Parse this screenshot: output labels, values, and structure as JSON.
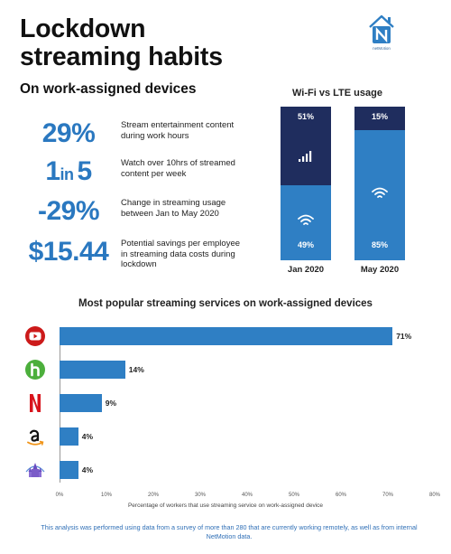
{
  "header": {
    "title_line1": "Lockdown",
    "title_line2": "streaming habits",
    "subtitle": "On work-assigned devices",
    "logo_text": "netMotion"
  },
  "stats": [
    {
      "big": "29%",
      "desc": "Stream entertainment content during work hours"
    },
    {
      "big_a": "1",
      "big_in": "in",
      "big_b": "5",
      "desc": "Watch over 10hrs of streamed content per week"
    },
    {
      "big": "-29%",
      "desc": "Change in streaming usage between Jan to May 2020"
    },
    {
      "big": "$15.44",
      "desc": "Potential savings per employee in streaming data costs during lockdown"
    }
  ],
  "colors": {
    "accent": "#2f7fc4",
    "dark": "#1f2d5e",
    "stat_blue": "#2a78c0",
    "text": "#222222"
  },
  "chart_data": [
    {
      "type": "bar",
      "stacked": true,
      "title": "Wi-Fi vs LTE usage",
      "categories": [
        "Jan 2020",
        "May 2020"
      ],
      "series": [
        {
          "name": "LTE",
          "icon": "cellular-signal-icon",
          "color": "#1f2d5e",
          "values": [
            51,
            15
          ],
          "labels": [
            "51%",
            "15%"
          ]
        },
        {
          "name": "Wi-Fi",
          "icon": "wifi-icon",
          "color": "#2f7fc4",
          "values": [
            49,
            85
          ],
          "labels": [
            "49%",
            "85%"
          ]
        }
      ],
      "ylim": [
        0,
        100
      ]
    },
    {
      "type": "bar",
      "orientation": "horizontal",
      "title": "Most popular streaming services on work-assigned devices",
      "xlabel": "Percentage of workers that use streaming service on work-assigned device",
      "categories": [
        "YouTube",
        "Hulu",
        "Netflix",
        "Amazon",
        "Disney"
      ],
      "icons": [
        "youtube-icon",
        "hulu-icon",
        "netflix-icon",
        "amazon-icon",
        "disney-icon"
      ],
      "values": [
        71,
        14,
        9,
        4,
        4
      ],
      "value_labels": [
        "71%",
        "14%",
        "9%",
        "4%",
        "4%"
      ],
      "xlim": [
        0,
        80
      ],
      "ticks": [
        "0%",
        "10%",
        "20%",
        "30%",
        "40%",
        "50%",
        "60%",
        "70%",
        "80%"
      ],
      "color": "#2f7fc4"
    }
  ],
  "footnote": "This analysis was performed using data from a survey of more than 280 that are currently working remotely, as well as from internal NetMotion data."
}
